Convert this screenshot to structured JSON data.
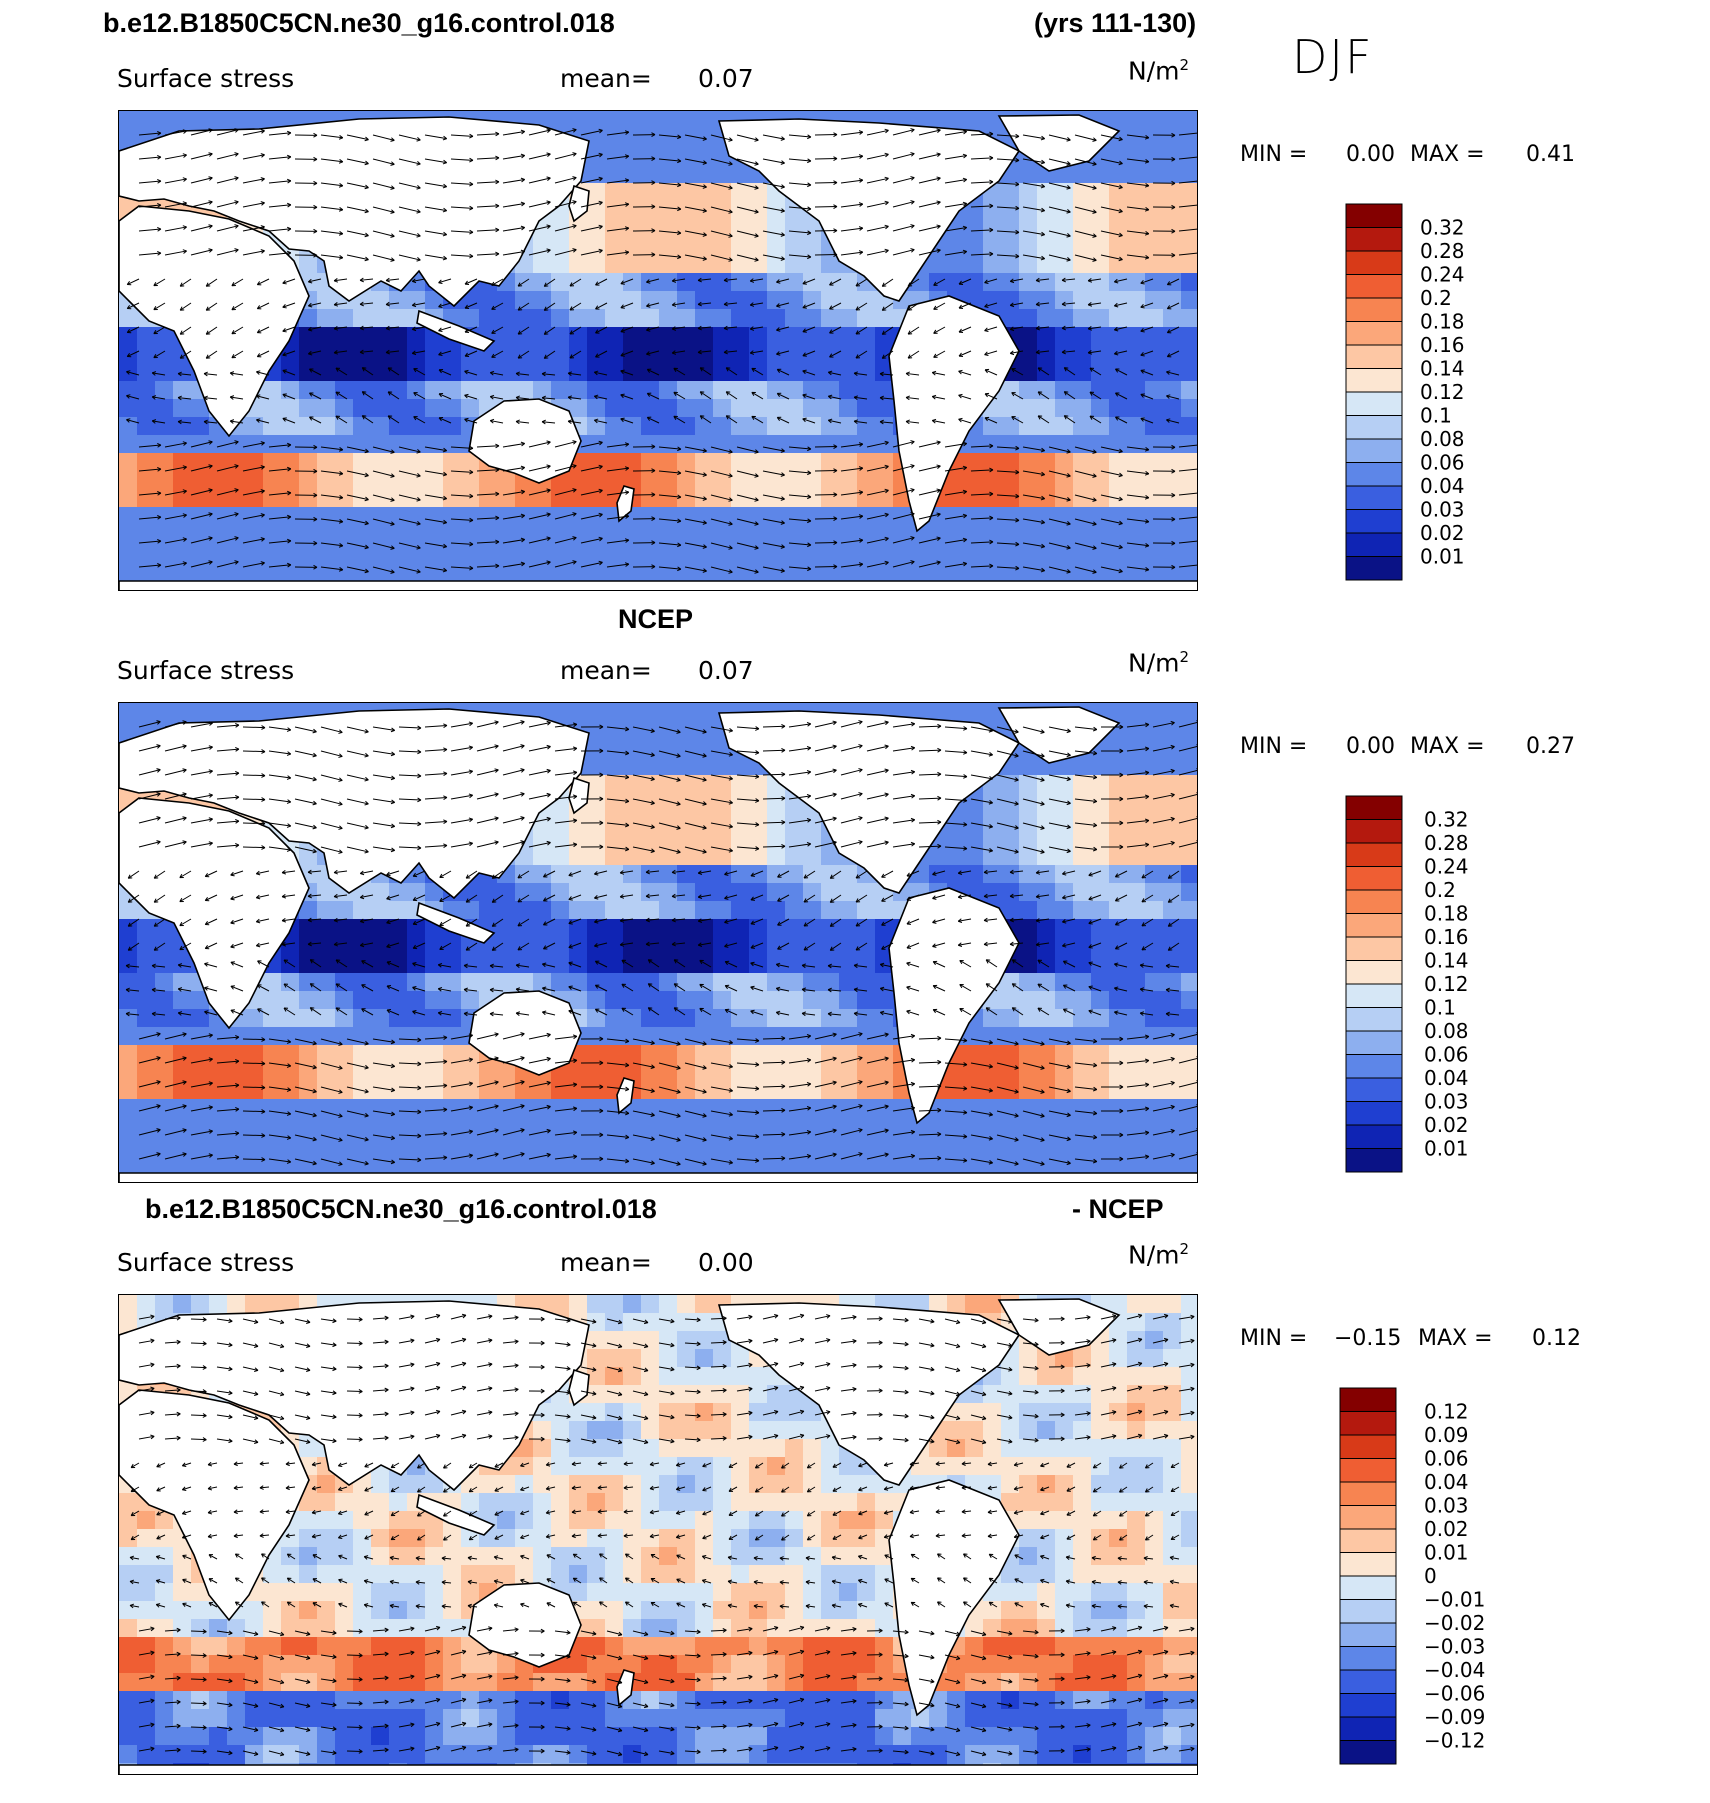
{
  "header": {
    "case_name": "b.e12.B1850C5CN.ne30_g16.control.018",
    "years": "(yrs 111-130)",
    "season": "DJF"
  },
  "panels": [
    {
      "id": "model",
      "heading": "",
      "heading_right": "",
      "variable": "Surface stress",
      "mean_label": "mean=",
      "mean_value": "0.07",
      "units_base": "N/m",
      "units_exp": "2",
      "min_label": "MIN =",
      "min_value": "0.00",
      "max_label": "MAX =",
      "max_value": "0.41",
      "colorbar_labels": [
        "0.32",
        "0.28",
        "0.24",
        "0.2",
        "0.18",
        "0.16",
        "0.14",
        "0.12",
        "0.1",
        "0.08",
        "0.06",
        "0.04",
        "0.03",
        "0.02",
        "0.01"
      ],
      "colorbar_colors": [
        "#840000",
        "#b4190e",
        "#d83a18",
        "#ef5e33",
        "#f78451",
        "#fba77a",
        "#fdc7a4",
        "#fce6d2",
        "#d6e7f6",
        "#b6cff4",
        "#8dafef",
        "#5d86e8",
        "#3a5fe0",
        "#1f3fd1",
        "#0f24b4",
        "#0a1286"
      ]
    },
    {
      "id": "obs",
      "heading": "NCEP",
      "heading_right": "",
      "variable": "Surface stress",
      "mean_label": "mean=",
      "mean_value": "0.07",
      "units_base": "N/m",
      "units_exp": "2",
      "min_label": "MIN =",
      "min_value": "0.00",
      "max_label": "MAX =",
      "max_value": "0.27",
      "colorbar_labels": [
        "0.32",
        "0.28",
        "0.24",
        "0.2",
        "0.18",
        "0.16",
        "0.14",
        "0.12",
        "0.1",
        "0.08",
        "0.06",
        "0.04",
        "0.03",
        "0.02",
        "0.01"
      ],
      "colorbar_colors": [
        "#840000",
        "#b4190e",
        "#d83a18",
        "#ef5e33",
        "#f78451",
        "#fba77a",
        "#fdc7a4",
        "#fce6d2",
        "#d6e7f6",
        "#b6cff4",
        "#8dafef",
        "#5d86e8",
        "#3a5fe0",
        "#1f3fd1",
        "#0f24b4",
        "#0a1286"
      ]
    },
    {
      "id": "diff",
      "heading": "b.e12.B1850C5CN.ne30_g16.control.018",
      "heading_right": "- NCEP",
      "variable": "Surface stress",
      "mean_label": "mean=",
      "mean_value": "0.00",
      "units_base": "N/m",
      "units_exp": "2",
      "min_label": "MIN =",
      "min_value": "−0.15",
      "max_label": "MAX =",
      "max_value": "0.12",
      "colorbar_labels": [
        "0.12",
        "0.09",
        "0.06",
        "0.04",
        "0.03",
        "0.02",
        "0.01",
        "0",
        "−0.01",
        "−0.02",
        "−0.03",
        "−0.04",
        "−0.06",
        "−0.09",
        "−0.12"
      ],
      "colorbar_colors": [
        "#840000",
        "#b4190e",
        "#d83a18",
        "#ef5e33",
        "#f78451",
        "#fba77a",
        "#fdc7a4",
        "#fce6d2",
        "#d6e7f6",
        "#b6cff4",
        "#8dafef",
        "#5d86e8",
        "#3a5fe0",
        "#1f3fd1",
        "#0f24b4",
        "#0a1286"
      ]
    }
  ]
}
